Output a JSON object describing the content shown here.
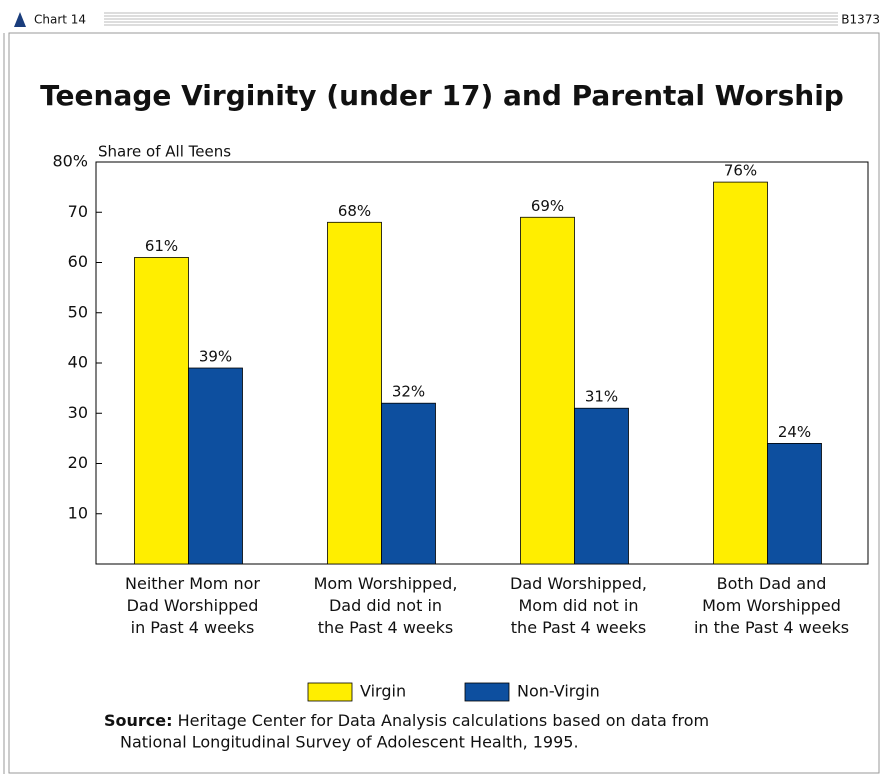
{
  "header": {
    "chart_label": "Chart 14",
    "code": "B1373"
  },
  "chart_data": {
    "type": "bar",
    "title": "Teenage Virginity (under 17) and Parental Worship",
    "y_label": "Share of All Teens",
    "categories": [
      "Neither Mom nor\nDad Worshipped\nin Past 4 weeks",
      "Mom Worshipped,\nDad did not in\nthe Past 4 weeks",
      "Dad Worshipped,\nMom did not in\nthe Past 4 weeks",
      "Both Dad and\nMom Worshipped\nin the Past 4 weeks"
    ],
    "series": [
      {
        "name": "Virgin",
        "color": "#ffee00",
        "values": [
          61,
          68,
          69,
          76
        ],
        "value_labels": [
          "61%",
          "68%",
          "69%",
          "76%"
        ]
      },
      {
        "name": "Non-Virgin",
        "color": "#0d4f9f",
        "values": [
          39,
          32,
          31,
          24
        ],
        "value_labels": [
          "39%",
          "32%",
          "31%",
          "24%"
        ]
      }
    ],
    "ylim": [
      0,
      80
    ],
    "yticks": [
      10,
      20,
      30,
      40,
      50,
      60,
      70,
      {
        "value": 80,
        "label": "80%"
      }
    ],
    "legend": "bottom",
    "source": {
      "label": "Source:",
      "lines": [
        "Heritage Center for Data Analysis calculations based on data from",
        "National Longitudinal Survey of Adolescent Health, 1995."
      ]
    }
  }
}
